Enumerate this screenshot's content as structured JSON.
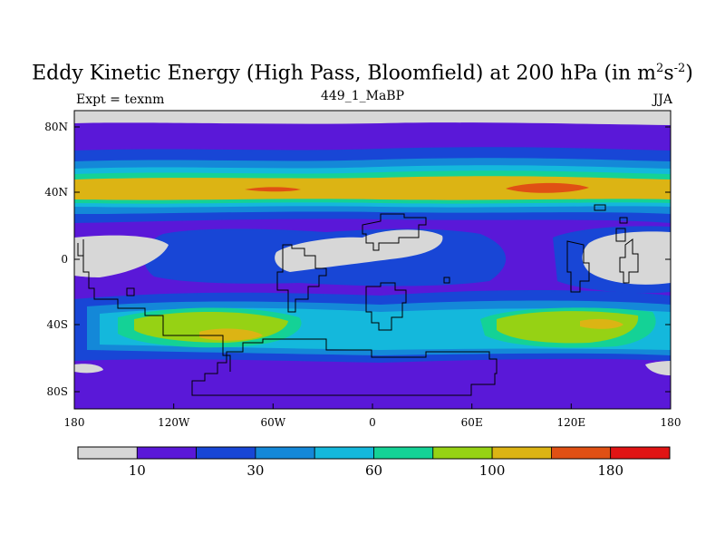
{
  "title": {
    "main": "Eddy Kinetic Energy (High Pass, Bloomfield) at 200 hPa (in m",
    "sup1": "2",
    "mid": "s",
    "sup2": "-2",
    "end": ")"
  },
  "subtitle_left": "Expt = texnm",
  "subtitle_center": "449_1_MaBP",
  "subtitle_right": "JJA",
  "lat_labels": [
    "80N",
    "40N",
    "0",
    "40S",
    "80S"
  ],
  "lon_labels": [
    "180",
    "120W",
    "60W",
    "0",
    "60E",
    "120E",
    "180"
  ],
  "colorbar": {
    "colors": [
      "#d7d7d7",
      "#5a18d8",
      "#1846d6",
      "#1488d8",
      "#14b8dc",
      "#14d296",
      "#96d214",
      "#dcb414",
      "#e05014",
      "#e01414"
    ],
    "labels": [
      "10",
      "30",
      "60",
      "100",
      "180"
    ]
  },
  "colors": {
    "coastline": "#000000"
  }
}
